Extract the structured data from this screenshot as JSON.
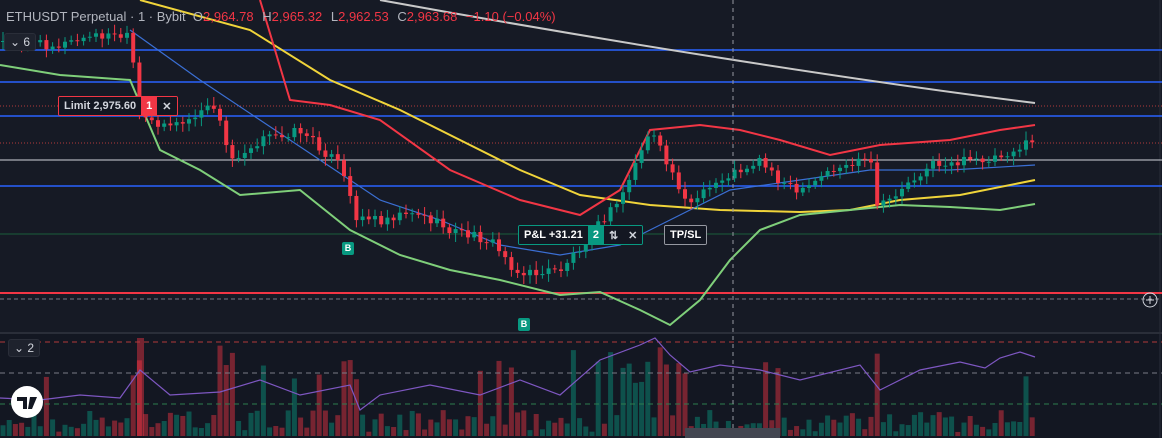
{
  "header": {
    "symbol": "ETHUSDT Perpetual · 1 · Bybit",
    "open_label": "O",
    "open": "2,964.78",
    "high_label": "H",
    "high": "2,965.32",
    "low_label": "L",
    "low": "2,962.53",
    "close_label": "C",
    "close": "2,963.68",
    "change": "−1.10 (−0.04%)"
  },
  "main_pane": {
    "indicator_count": "6",
    "order": {
      "label": "Limit 2,975.60",
      "quantity": "1"
    },
    "position": {
      "pnl": "P&L +31.21",
      "quantity": "2",
      "tpsl": "TP/SL"
    },
    "markers": [
      "B",
      "B"
    ]
  },
  "volume_pane": {
    "indicator_count": "2"
  }
}
